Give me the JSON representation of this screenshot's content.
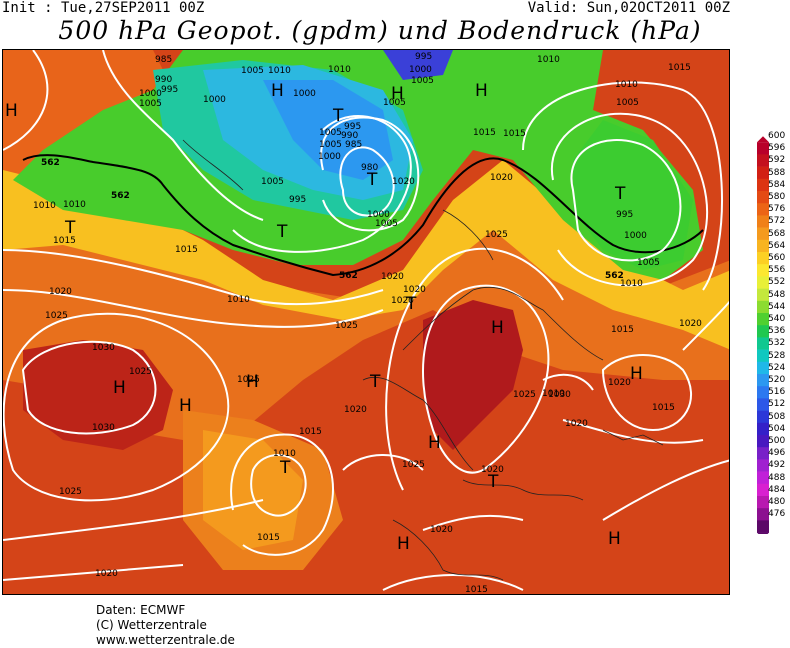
{
  "header": {
    "init": "Init : Tue,27SEP2011 00Z",
    "valid": "Valid: Sun,02OCT2011 00Z",
    "title": "500 hPa Geopot. (gpdm) und Bodendruck (hPa)"
  },
  "map": {
    "pressure_labels": [
      "985",
      "990",
      "995",
      "1005",
      "1000",
      "1000",
      "1010",
      "995",
      "1000",
      "1005",
      "1010",
      "1015",
      "1010",
      "1005",
      "1000",
      "1005",
      "1005",
      "995",
      "990",
      "985",
      "1005",
      "1000",
      "1005",
      "1015",
      "1020",
      "1010",
      "1005",
      "1010",
      "1015",
      "995",
      "1000",
      "1005",
      "1010",
      "1015",
      "1020",
      "1025",
      "1020",
      "1025",
      "1020",
      "1010",
      "1015",
      "980",
      "995",
      "1000",
      "1005",
      "1010",
      "1020",
      "1025",
      "1030",
      "1030",
      "1020",
      "1025",
      "1030",
      "1025",
      "1020",
      "1015",
      "1010",
      "1015",
      "1020",
      "1025",
      "1020",
      "1020",
      "1025",
      "1015",
      "1010",
      "1020",
      "1015",
      "1020",
      "1015",
      "1025",
      "1020"
    ],
    "contour_labels": [
      "562",
      "562",
      "562",
      "562"
    ],
    "high_symbol": "H",
    "low_symbol": "T"
  },
  "colorbar": {
    "levels": [
      "600",
      "596",
      "592",
      "588",
      "584",
      "580",
      "576",
      "572",
      "568",
      "564",
      "560",
      "556",
      "552",
      "548",
      "544",
      "540",
      "536",
      "532",
      "528",
      "524",
      "520",
      "516",
      "512",
      "508",
      "504",
      "500",
      "496",
      "492",
      "488",
      "484",
      "480",
      "476"
    ],
    "colors": [
      "#b8002a",
      "#c4101e",
      "#d22014",
      "#dc3412",
      "#e44a14",
      "#ec6416",
      "#f08018",
      "#f49a1e",
      "#f8b420",
      "#fcd024",
      "#fce830",
      "#e8f038",
      "#c4e83c",
      "#8cdc30",
      "#50d030",
      "#20c850",
      "#10c890",
      "#10c8c0",
      "#20b8e8",
      "#2c98f0",
      "#2c78f0",
      "#2c58e8",
      "#2c38d8",
      "#3420c8",
      "#4818c0",
      "#7820c8",
      "#a020d0",
      "#c020d8",
      "#d820d0",
      "#b818b0",
      "#8c1090",
      "#5c0868"
    ]
  },
  "footer": {
    "line1": "Daten: ECMWF",
    "line2": "(C) Wetterzentrale",
    "line3": "www.wetterzentrale.de"
  }
}
